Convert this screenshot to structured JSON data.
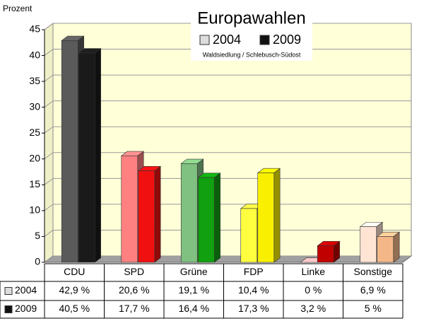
{
  "chart_data": {
    "type": "bar3d",
    "title": "Europawahlen",
    "subtitle": "Waldsiedlung / Schlebusch-Südost",
    "y_label": "Prozent",
    "categories": [
      "CDU",
      "SPD",
      "Grüne",
      "FDP",
      "Linke",
      "Sonstige"
    ],
    "series": [
      {
        "name": "2004",
        "color": "#dddddd",
        "colors": [
          "#5a5a5a",
          "#ff8080",
          "#80c080",
          "#ffff40",
          "#ffb0b0",
          "#ffe4d4"
        ],
        "values": [
          42.9,
          20.6,
          19.1,
          10.4,
          0,
          6.9
        ],
        "value_labels": [
          "42,9 %",
          "20,6 %",
          "19,1 %",
          "10,4 %",
          "0 %",
          "6,9 %"
        ]
      },
      {
        "name": "2009",
        "color": "#111111",
        "colors": [
          "#1a1a1a",
          "#f01010",
          "#10a010",
          "#f8f000",
          "#c00000",
          "#f4b888"
        ],
        "values": [
          40.5,
          17.7,
          16.4,
          17.3,
          3.2,
          5
        ],
        "value_labels": [
          "40,5 %",
          "17,7 %",
          "16,4 %",
          "17,3 %",
          "3,2 %",
          "5 %"
        ]
      }
    ],
    "ylim": [
      0,
      45
    ],
    "yticks": [
      0,
      5,
      10,
      15,
      20,
      25,
      30,
      35,
      40,
      45
    ],
    "grid": true
  }
}
